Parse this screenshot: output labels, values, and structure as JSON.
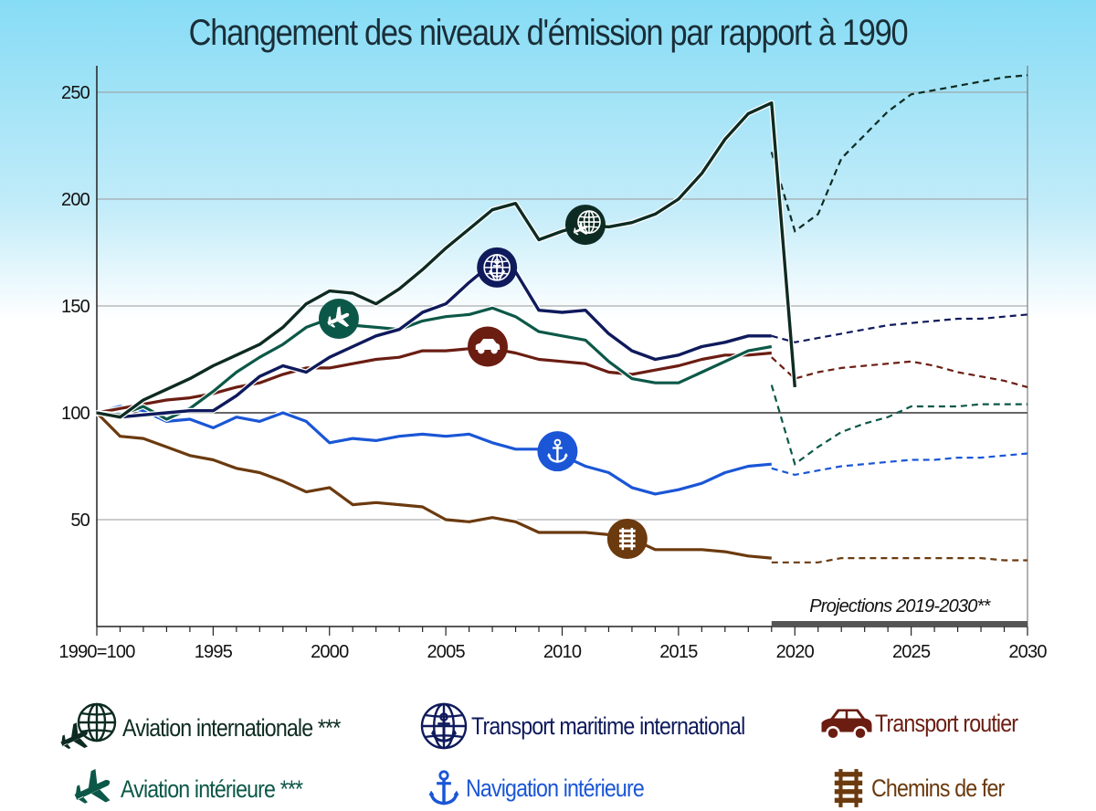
{
  "title": "Changement des niveaux d'émission par rapport à 1990",
  "chart_data": {
    "type": "line",
    "title": "Changement des niveaux d'émission par rapport à 1990",
    "xlabel": "",
    "ylabel": "",
    "x_range": [
      1990,
      2030
    ],
    "ylim": [
      0,
      265
    ],
    "y_ticks": [
      50,
      100,
      150,
      200,
      250
    ],
    "x_ticks": [
      {
        "x": 1990,
        "label": "1990=100"
      },
      {
        "x": 1995,
        "label": "1995"
      },
      {
        "x": 2000,
        "label": "2000"
      },
      {
        "x": 2005,
        "label": "2005"
      },
      {
        "x": 2010,
        "label": "2010"
      },
      {
        "x": 2015,
        "label": "2015"
      },
      {
        "x": 2020,
        "label": "2020"
      },
      {
        "x": 2025,
        "label": "2025"
      },
      {
        "x": 2030,
        "label": "2030"
      }
    ],
    "reference_line": 100,
    "projection_label": "Projections 2019-2030**",
    "projection_range": [
      2019,
      2030
    ],
    "series": [
      {
        "name": "Aviation internationale ***",
        "color": "#0d2b22",
        "icon": "globe-plane-icon",
        "marker_at": [
          2011,
          188
        ],
        "x": [
          1990,
          1991,
          1992,
          1993,
          1994,
          1995,
          1996,
          1997,
          1998,
          1999,
          2000,
          2001,
          2002,
          2003,
          2004,
          2005,
          2006,
          2007,
          2008,
          2009,
          2010,
          2011,
          2012,
          2013,
          2014,
          2015,
          2016,
          2017,
          2018,
          2019,
          2020
        ],
        "values": [
          100,
          98,
          106,
          111,
          116,
          122,
          127,
          132,
          140,
          151,
          157,
          156,
          151,
          158,
          167,
          177,
          186,
          195,
          198,
          181,
          185,
          188,
          187,
          189,
          193,
          200,
          212,
          228,
          240,
          245,
          112
        ],
        "projection_x": [
          2019,
          2020,
          2021,
          2022,
          2023,
          2024,
          2025,
          2026,
          2027,
          2028,
          2029,
          2030
        ],
        "projection_values": [
          222,
          185,
          193,
          219,
          230,
          241,
          249,
          251,
          253,
          255,
          257,
          258
        ]
      },
      {
        "name": "Transport maritime international",
        "color": "#0f1a5c",
        "icon": "globe-anchor-icon",
        "marker_at": [
          2007.2,
          168
        ],
        "x": [
          1990,
          1991,
          1992,
          1993,
          1994,
          1995,
          1996,
          1997,
          1998,
          1999,
          2000,
          2001,
          2002,
          2003,
          2004,
          2005,
          2006,
          2007,
          2008,
          2009,
          2010,
          2011,
          2012,
          2013,
          2014,
          2015,
          2016,
          2017,
          2018,
          2019
        ],
        "values": [
          100,
          98,
          99,
          100,
          101,
          101,
          108,
          117,
          122,
          119,
          126,
          131,
          136,
          139,
          147,
          151,
          161,
          170,
          166,
          148,
          147,
          148,
          137,
          129,
          125,
          127,
          131,
          133,
          136,
          136
        ],
        "projection_x": [
          2019,
          2020,
          2021,
          2022,
          2023,
          2024,
          2025,
          2026,
          2027,
          2028,
          2029,
          2030
        ],
        "projection_values": [
          136,
          133,
          135,
          137,
          139,
          141,
          142,
          143,
          144,
          144,
          145,
          146
        ]
      },
      {
        "name": "Transport routier",
        "color": "#6b1d12",
        "icon": "car-icon",
        "marker_at": [
          2006.8,
          131
        ],
        "x": [
          1990,
          1991,
          1992,
          1993,
          1994,
          1995,
          1996,
          1997,
          1998,
          1999,
          2000,
          2001,
          2002,
          2003,
          2004,
          2005,
          2006,
          2007,
          2008,
          2009,
          2010,
          2011,
          2012,
          2013,
          2014,
          2015,
          2016,
          2017,
          2018,
          2019
        ],
        "values": [
          100,
          102,
          104,
          106,
          107,
          109,
          112,
          114,
          118,
          121,
          121,
          123,
          125,
          126,
          129,
          129,
          130,
          130,
          128,
          125,
          124,
          123,
          119,
          118,
          120,
          122,
          125,
          127,
          127,
          128
        ],
        "projection_x": [
          2019,
          2020,
          2021,
          2022,
          2023,
          2024,
          2025,
          2026,
          2027,
          2028,
          2029,
          2030
        ],
        "projection_values": [
          126,
          116,
          119,
          121,
          122,
          123,
          124,
          122,
          119,
          117,
          115,
          112
        ]
      },
      {
        "name": "Aviation intérieure ***",
        "color": "#0c5848",
        "icon": "plane-icon",
        "marker_at": [
          2000.4,
          144
        ],
        "x": [
          1990,
          1991,
          1992,
          1993,
          1994,
          1995,
          1996,
          1997,
          1998,
          1999,
          2000,
          2001,
          2002,
          2003,
          2004,
          2005,
          2006,
          2007,
          2008,
          2009,
          2010,
          2011,
          2012,
          2013,
          2014,
          2015,
          2016,
          2017,
          2018,
          2019
        ],
        "values": [
          100,
          99,
          103,
          97,
          102,
          110,
          119,
          126,
          132,
          140,
          144,
          141,
          140,
          139,
          143,
          145,
          146,
          149,
          145,
          138,
          136,
          134,
          124,
          116,
          114,
          114,
          119,
          124,
          129,
          131
        ],
        "projection_x": [
          2019,
          2020,
          2021,
          2022,
          2023,
          2024,
          2025,
          2026,
          2027,
          2028,
          2029,
          2030
        ],
        "projection_values": [
          113,
          76,
          84,
          91,
          95,
          98,
          103,
          103,
          103,
          104,
          104,
          104
        ]
      },
      {
        "name": "Navigation intérieure",
        "color": "#1a56d6",
        "icon": "anchor-icon",
        "marker_at": [
          2009.8,
          82
        ],
        "x": [
          1990,
          1991,
          1992,
          1993,
          1994,
          1995,
          1996,
          1997,
          1998,
          1999,
          2000,
          2001,
          2002,
          2003,
          2004,
          2005,
          2006,
          2007,
          2008,
          2009,
          2010,
          2011,
          2012,
          2013,
          2014,
          2015,
          2016,
          2017,
          2018,
          2019
        ],
        "values": [
          100,
          103,
          101,
          96,
          97,
          93,
          98,
          96,
          100,
          96,
          86,
          88,
          87,
          89,
          90,
          89,
          90,
          86,
          83,
          83,
          80,
          75,
          72,
          65,
          62,
          64,
          67,
          72,
          75,
          76
        ],
        "projection_x": [
          2019,
          2020,
          2021,
          2022,
          2023,
          2024,
          2025,
          2026,
          2027,
          2028,
          2029,
          2030
        ],
        "projection_values": [
          74,
          71,
          73,
          75,
          76,
          77,
          78,
          78,
          79,
          79,
          80,
          81
        ]
      },
      {
        "name": "Chemins de fer",
        "color": "#6b3a0e",
        "icon": "railway-icon",
        "marker_at": [
          2012.8,
          41
        ],
        "x": [
          1990,
          1991,
          1992,
          1993,
          1994,
          1995,
          1996,
          1997,
          1998,
          1999,
          2000,
          2001,
          2002,
          2003,
          2004,
          2005,
          2006,
          2007,
          2008,
          2009,
          2010,
          2011,
          2012,
          2013,
          2014,
          2015,
          2016,
          2017,
          2018,
          2019
        ],
        "values": [
          100,
          89,
          88,
          84,
          80,
          78,
          74,
          72,
          68,
          63,
          65,
          57,
          58,
          57,
          56,
          50,
          49,
          51,
          49,
          44,
          44,
          44,
          43,
          41,
          36,
          36,
          36,
          35,
          33,
          32
        ],
        "projection_x": [
          2019,
          2020,
          2021,
          2022,
          2023,
          2024,
          2025,
          2026,
          2027,
          2028,
          2029,
          2030
        ],
        "projection_values": [
          30,
          30,
          30,
          32,
          32,
          32,
          32,
          32,
          32,
          32,
          31,
          31
        ]
      }
    ]
  }
}
